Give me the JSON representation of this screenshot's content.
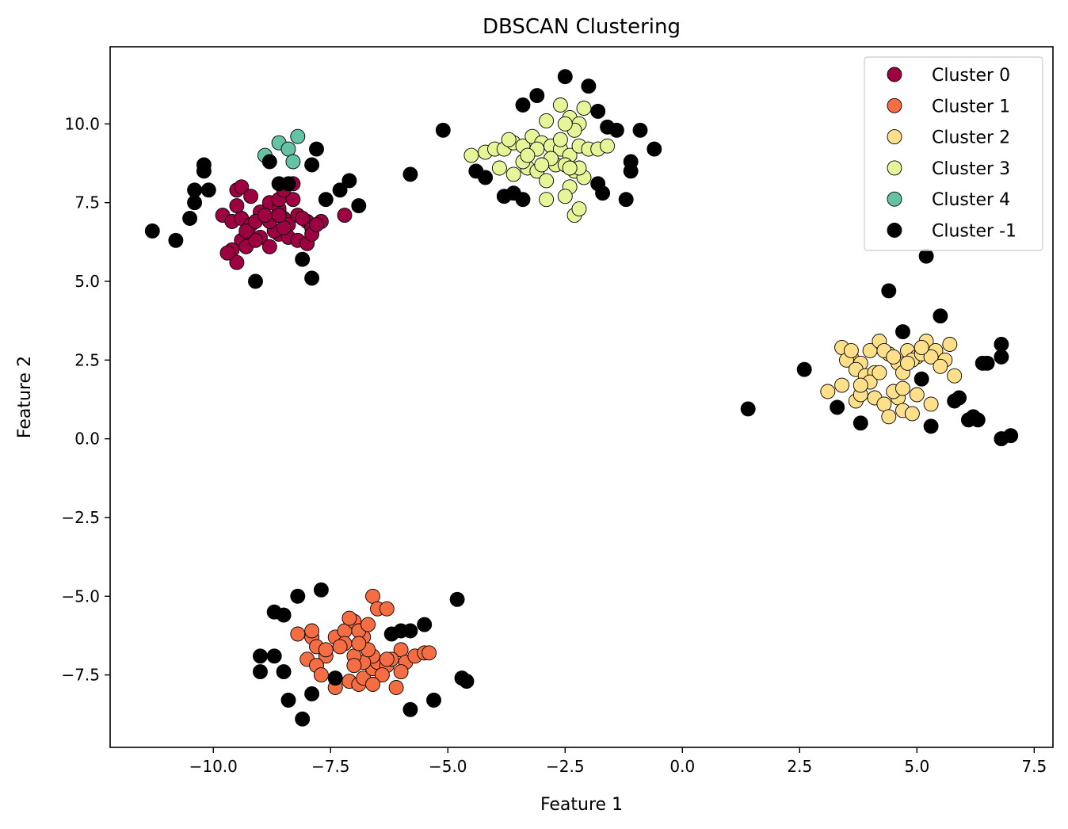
{
  "chart_data": {
    "type": "scatter",
    "title": "DBSCAN Clustering",
    "xlabel": "Feature 1",
    "ylabel": "Feature 2",
    "xlim": [
      -12.2,
      7.9
    ],
    "ylim": [
      -9.8,
      12.45
    ],
    "xticks": [
      -10.0,
      -7.5,
      -5.0,
      -2.5,
      0.0,
      2.5,
      5.0,
      7.5
    ],
    "xtick_labels": [
      "−10.0",
      "−7.5",
      "−5.0",
      "−2.5",
      "0.0",
      "2.5",
      "5.0",
      "7.5"
    ],
    "yticks": [
      -7.5,
      -5.0,
      -2.5,
      0.0,
      2.5,
      5.0,
      7.5,
      10.0
    ],
    "ytick_labels": [
      "−7.5",
      "−5.0",
      "−2.5",
      "0.0",
      "2.5",
      "5.0",
      "7.5",
      "10.0"
    ],
    "grid": false,
    "legend_position": "top-right",
    "series": [
      {
        "name": "Cluster 0",
        "color": "#9e0142",
        "points": [
          [
            -9.8,
            7.1
          ],
          [
            -9.6,
            6.9
          ],
          [
            -9.4,
            7.0
          ],
          [
            -9.2,
            6.8
          ],
          [
            -9.0,
            7.2
          ],
          [
            -8.8,
            7.5
          ],
          [
            -8.6,
            7.3
          ],
          [
            -8.5,
            7.0
          ],
          [
            -8.4,
            6.8
          ],
          [
            -8.3,
            7.6
          ],
          [
            -8.2,
            7.1
          ],
          [
            -8.0,
            6.9
          ],
          [
            -7.9,
            6.7
          ],
          [
            -7.7,
            6.9
          ],
          [
            -7.2,
            7.1
          ],
          [
            -9.5,
            7.9
          ],
          [
            -9.4,
            8.0
          ],
          [
            -9.2,
            7.7
          ],
          [
            -9.5,
            7.4
          ],
          [
            -8.6,
            7.6
          ],
          [
            -8.3,
            8.1
          ],
          [
            -8.5,
            7.9
          ],
          [
            -9.4,
            6.3
          ],
          [
            -9.2,
            6.4
          ],
          [
            -9.0,
            6.4
          ],
          [
            -8.8,
            6.1
          ],
          [
            -8.6,
            6.5
          ],
          [
            -8.4,
            6.4
          ],
          [
            -8.2,
            6.3
          ],
          [
            -8.0,
            6.2
          ],
          [
            -7.9,
            6.5
          ],
          [
            -9.6,
            6.0
          ],
          [
            -9.5,
            5.6
          ],
          [
            -9.3,
            6.1
          ],
          [
            -9.1,
            6.3
          ],
          [
            -8.7,
            6.6
          ],
          [
            -8.5,
            6.7
          ],
          [
            -8.8,
            6.9
          ],
          [
            -9.3,
            6.6
          ],
          [
            -9.7,
            5.9
          ],
          [
            -9.1,
            6.9
          ],
          [
            -8.9,
            7.1
          ],
          [
            -8.6,
            7.1
          ],
          [
            -8.1,
            7.0
          ],
          [
            -7.8,
            6.8
          ]
        ]
      },
      {
        "name": "Cluster 1",
        "color": "#f46d43",
        "points": [
          [
            -8.2,
            -6.2
          ],
          [
            -7.9,
            -6.3
          ],
          [
            -7.8,
            -6.6
          ],
          [
            -7.6,
            -6.9
          ],
          [
            -7.4,
            -6.3
          ],
          [
            -7.2,
            -6.1
          ],
          [
            -7.0,
            -5.8
          ],
          [
            -6.8,
            -6.3
          ],
          [
            -6.6,
            -5.0
          ],
          [
            -6.5,
            -5.4
          ],
          [
            -6.3,
            -5.4
          ],
          [
            -6.0,
            -6.7
          ],
          [
            -5.9,
            -7.1
          ],
          [
            -5.7,
            -6.9
          ],
          [
            -5.5,
            -6.8
          ],
          [
            -5.4,
            -6.8
          ],
          [
            -8.0,
            -7.0
          ],
          [
            -7.8,
            -7.2
          ],
          [
            -7.7,
            -7.5
          ],
          [
            -7.4,
            -7.9
          ],
          [
            -7.1,
            -7.7
          ],
          [
            -6.9,
            -7.8
          ],
          [
            -6.8,
            -7.6
          ],
          [
            -6.6,
            -7.3
          ],
          [
            -6.5,
            -7.1
          ],
          [
            -6.3,
            -7.2
          ],
          [
            -6.1,
            -7.9
          ],
          [
            -6.0,
            -7.4
          ],
          [
            -6.6,
            -6.9
          ],
          [
            -6.8,
            -7.1
          ],
          [
            -7.0,
            -6.9
          ],
          [
            -7.2,
            -6.5
          ],
          [
            -6.9,
            -6.1
          ],
          [
            -6.7,
            -6.7
          ],
          [
            -7.3,
            -6.6
          ],
          [
            -6.4,
            -7.5
          ],
          [
            -6.6,
            -7.8
          ],
          [
            -7.1,
            -5.7
          ],
          [
            -6.7,
            -5.9
          ],
          [
            -6.2,
            -7.0
          ],
          [
            -7.6,
            -6.7
          ],
          [
            -7.9,
            -6.1
          ],
          [
            -6.9,
            -6.5
          ],
          [
            -7.0,
            -7.2
          ],
          [
            -6.3,
            -7.0
          ]
        ]
      },
      {
        "name": "Cluster 2",
        "color": "#fee08b",
        "points": [
          [
            3.4,
            2.9
          ],
          [
            3.6,
            2.6
          ],
          [
            3.8,
            2.4
          ],
          [
            4.0,
            2.8
          ],
          [
            4.2,
            3.1
          ],
          [
            4.4,
            2.7
          ],
          [
            4.6,
            2.4
          ],
          [
            4.8,
            2.8
          ],
          [
            5.0,
            2.6
          ],
          [
            5.2,
            3.1
          ],
          [
            5.4,
            2.8
          ],
          [
            5.6,
            2.5
          ],
          [
            5.8,
            2.0
          ],
          [
            3.5,
            2.5
          ],
          [
            3.7,
            2.2
          ],
          [
            3.9,
            2.0
          ],
          [
            4.1,
            2.1
          ],
          [
            4.3,
            2.8
          ],
          [
            4.5,
            2.6
          ],
          [
            4.7,
            2.1
          ],
          [
            4.9,
            2.5
          ],
          [
            5.1,
            2.7
          ],
          [
            5.3,
            2.6
          ],
          [
            5.5,
            2.3
          ],
          [
            5.7,
            3.0
          ],
          [
            3.1,
            1.5
          ],
          [
            3.4,
            1.7
          ],
          [
            3.7,
            1.2
          ],
          [
            3.8,
            1.4
          ],
          [
            4.1,
            1.3
          ],
          [
            4.3,
            1.1
          ],
          [
            4.4,
            0.7
          ],
          [
            4.6,
            1.3
          ],
          [
            4.7,
            0.9
          ],
          [
            4.9,
            0.8
          ],
          [
            5.0,
            1.4
          ],
          [
            5.3,
            1.1
          ],
          [
            4.0,
            1.8
          ],
          [
            4.2,
            2.1
          ],
          [
            3.8,
            1.7
          ],
          [
            4.5,
            1.5
          ],
          [
            4.7,
            1.6
          ],
          [
            3.6,
            2.8
          ],
          [
            4.8,
            2.4
          ],
          [
            5.1,
            2.9
          ]
        ]
      },
      {
        "name": "Cluster 3",
        "color": "#e6f598",
        "points": [
          [
            -4.5,
            9.0
          ],
          [
            -4.2,
            9.1
          ],
          [
            -4.0,
            9.2
          ],
          [
            -3.8,
            9.2
          ],
          [
            -3.6,
            9.4
          ],
          [
            -3.4,
            9.3
          ],
          [
            -3.2,
            9.6
          ],
          [
            -3.0,
            9.4
          ],
          [
            -2.8,
            9.3
          ],
          [
            -2.6,
            9.2
          ],
          [
            -2.4,
            9.0
          ],
          [
            -2.2,
            9.3
          ],
          [
            -2.0,
            9.2
          ],
          [
            -1.8,
            9.2
          ],
          [
            -1.6,
            9.3
          ],
          [
            -3.9,
            8.6
          ],
          [
            -3.6,
            8.4
          ],
          [
            -3.3,
            8.6
          ],
          [
            -3.1,
            8.5
          ],
          [
            -2.9,
            8.2
          ],
          [
            -2.7,
            8.7
          ],
          [
            -2.5,
            8.7
          ],
          [
            -2.3,
            8.5
          ],
          [
            -2.1,
            8.3
          ],
          [
            -2.4,
            8.0
          ],
          [
            -2.5,
            7.7
          ],
          [
            -2.3,
            7.1
          ],
          [
            -2.2,
            7.3
          ],
          [
            -2.9,
            7.6
          ],
          [
            -2.6,
            10.6
          ],
          [
            -2.4,
            10.2
          ],
          [
            -2.2,
            10.0
          ],
          [
            -2.1,
            10.5
          ],
          [
            -2.3,
            9.8
          ],
          [
            -2.5,
            10.0
          ],
          [
            -2.9,
            10.1
          ],
          [
            -3.1,
            9.2
          ],
          [
            -3.4,
            8.8
          ],
          [
            -3.7,
            9.5
          ],
          [
            -2.2,
            8.6
          ],
          [
            -2.6,
            9.5
          ],
          [
            -3.3,
            9.0
          ],
          [
            -2.8,
            8.9
          ],
          [
            -2.4,
            8.6
          ],
          [
            -3.0,
            8.7
          ]
        ]
      },
      {
        "name": "Cluster 4",
        "color": "#66c2a5",
        "points": [
          [
            -8.9,
            9.0
          ],
          [
            -8.6,
            9.4
          ],
          [
            -8.4,
            9.2
          ],
          [
            -8.2,
            9.6
          ],
          [
            -8.3,
            8.8
          ]
        ]
      },
      {
        "name": "Cluster -1",
        "color": "#000000",
        "points": [
          [
            -11.3,
            6.6
          ],
          [
            -10.8,
            6.3
          ],
          [
            -10.5,
            7.0
          ],
          [
            -10.4,
            7.9
          ],
          [
            -10.4,
            7.5
          ],
          [
            -10.2,
            8.5
          ],
          [
            -10.2,
            8.7
          ],
          [
            -10.1,
            7.9
          ],
          [
            -9.1,
            5.0
          ],
          [
            -8.8,
            8.8
          ],
          [
            -8.6,
            8.1
          ],
          [
            -8.4,
            8.1
          ],
          [
            -8.1,
            5.7
          ],
          [
            -7.9,
            5.1
          ],
          [
            -7.9,
            8.7
          ],
          [
            -7.8,
            9.2
          ],
          [
            -7.6,
            7.6
          ],
          [
            -7.3,
            7.9
          ],
          [
            -7.1,
            8.2
          ],
          [
            -6.9,
            7.4
          ],
          [
            -5.8,
            8.4
          ],
          [
            -5.1,
            9.8
          ],
          [
            -4.4,
            8.5
          ],
          [
            -4.2,
            8.3
          ],
          [
            -3.8,
            7.7
          ],
          [
            -3.6,
            7.8
          ],
          [
            -3.4,
            7.6
          ],
          [
            -3.4,
            10.6
          ],
          [
            -3.1,
            10.9
          ],
          [
            -2.5,
            11.5
          ],
          [
            -2.0,
            11.2
          ],
          [
            -1.8,
            10.4
          ],
          [
            -1.6,
            9.9
          ],
          [
            -1.4,
            9.8
          ],
          [
            -1.8,
            8.1
          ],
          [
            -1.7,
            7.8
          ],
          [
            -1.2,
            7.6
          ],
          [
            -1.1,
            8.8
          ],
          [
            -1.1,
            8.5
          ],
          [
            -0.9,
            9.8
          ],
          [
            -0.6,
            9.2
          ],
          [
            -8.7,
            -5.5
          ],
          [
            -8.5,
            -5.6
          ],
          [
            -8.2,
            -5.0
          ],
          [
            -7.7,
            -4.8
          ],
          [
            -9.0,
            -6.9
          ],
          [
            -9.0,
            -7.4
          ],
          [
            -8.7,
            -6.9
          ],
          [
            -8.5,
            -7.4
          ],
          [
            -8.4,
            -8.3
          ],
          [
            -8.1,
            -8.9
          ],
          [
            -7.9,
            -8.1
          ],
          [
            -7.4,
            -7.6
          ],
          [
            -6.2,
            -6.2
          ],
          [
            -6.0,
            -6.1
          ],
          [
            -5.8,
            -8.6
          ],
          [
            -5.8,
            -6.1
          ],
          [
            -5.5,
            -5.9
          ],
          [
            -5.3,
            -8.3
          ],
          [
            -4.8,
            -5.1
          ],
          [
            -4.7,
            -7.6
          ],
          [
            -4.6,
            -7.7
          ],
          [
            1.4,
            0.95
          ],
          [
            2.6,
            2.2
          ],
          [
            3.3,
            1.0
          ],
          [
            3.8,
            0.5
          ],
          [
            4.4,
            4.7
          ],
          [
            4.7,
            3.4
          ],
          [
            5.1,
            1.9
          ],
          [
            5.2,
            5.8
          ],
          [
            5.3,
            0.4
          ],
          [
            5.5,
            3.9
          ],
          [
            5.8,
            1.2
          ],
          [
            5.9,
            1.3
          ],
          [
            6.1,
            0.6
          ],
          [
            6.2,
            0.7
          ],
          [
            6.3,
            0.6
          ],
          [
            6.4,
            2.4
          ],
          [
            6.5,
            2.4
          ],
          [
            6.8,
            3.0
          ],
          [
            6.8,
            2.6
          ],
          [
            6.8,
            0.0
          ],
          [
            7.0,
            0.1
          ]
        ]
      }
    ]
  }
}
